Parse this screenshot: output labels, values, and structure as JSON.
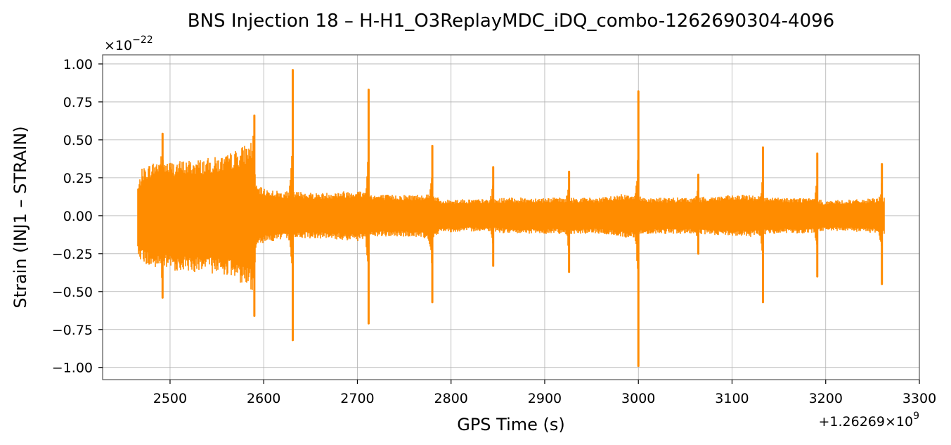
{
  "chart_data": {
    "type": "line",
    "title": "BNS Injection 18 – H-H1_O3ReplayMDC_iDQ_combo-1262690304-4096",
    "xlabel": "GPS Time (s)",
    "ylabel": "Strain (INJ1 – STRAIN)",
    "x_offset_text": "+1.26269×10",
    "x_offset_exponent": "9",
    "y_scale_text": "×10",
    "y_scale_exponent": "−22",
    "xlim": [
      2428,
      3300
    ],
    "ylim": [
      -1.08,
      1.06
    ],
    "grid": true,
    "legend": "none",
    "line_color": "#ff8c00",
    "x_ticks": [
      2500,
      2600,
      2700,
      2800,
      2900,
      3000,
      3100,
      3200,
      3300
    ],
    "x_tick_labels": [
      "2500",
      "2600",
      "2700",
      "2800",
      "2900",
      "3000",
      "3100",
      "3200",
      "3300"
    ],
    "y_ticks": [
      1.0,
      0.75,
      0.5,
      0.25,
      0.0,
      -0.25,
      -0.5,
      -0.75,
      -1.0
    ],
    "y_tick_labels": [
      "1.00",
      "0.75",
      "0.50",
      "0.25",
      "0.00",
      "−0.25",
      "−0.50",
      "−0.75",
      "−1.00"
    ],
    "series": [
      {
        "envelope": {
          "x": [
            2466,
            2470,
            2480,
            2490,
            2500,
            2520,
            2540,
            2560,
            2580,
            2589,
            2592,
            2600,
            2620,
            2640,
            2660,
            2700,
            2720,
            2760,
            2780,
            2790,
            2800,
            2840,
            2860,
            2900,
            2940,
            2960,
            2990,
            3010,
            3060,
            3080,
            3120,
            3140,
            3180,
            3200,
            3240,
            3262
          ],
          "upper": [
            0.2,
            0.31,
            0.35,
            0.38,
            0.36,
            0.37,
            0.38,
            0.4,
            0.47,
            0.5,
            0.2,
            0.18,
            0.16,
            0.16,
            0.15,
            0.17,
            0.14,
            0.14,
            0.15,
            0.1,
            0.11,
            0.11,
            0.12,
            0.12,
            0.12,
            0.12,
            0.15,
            0.12,
            0.12,
            0.13,
            0.14,
            0.12,
            0.12,
            0.1,
            0.11,
            0.12
          ],
          "lower": [
            -0.25,
            -0.31,
            -0.35,
            -0.36,
            -0.36,
            -0.37,
            -0.38,
            -0.39,
            -0.46,
            -0.5,
            -0.19,
            -0.18,
            -0.16,
            -0.15,
            -0.15,
            -0.17,
            -0.14,
            -0.14,
            -0.16,
            -0.1,
            -0.11,
            -0.1,
            -0.12,
            -0.12,
            -0.12,
            -0.12,
            -0.15,
            -0.12,
            -0.12,
            -0.13,
            -0.14,
            -0.12,
            -0.12,
            -0.1,
            -0.11,
            -0.12
          ]
        },
        "spikes": [
          {
            "x": 2492,
            "max": 0.54,
            "min": -0.54
          },
          {
            "x": 2590,
            "max": 0.66,
            "min": -0.66
          },
          {
            "x": 2631,
            "max": 0.96,
            "min": -0.82
          },
          {
            "x": 2712,
            "max": 0.83,
            "min": -0.71
          },
          {
            "x": 2780,
            "max": 0.46,
            "min": -0.57
          },
          {
            "x": 2845,
            "max": 0.32,
            "min": -0.33
          },
          {
            "x": 2926,
            "max": 0.29,
            "min": -0.37
          },
          {
            "x": 3000,
            "max": 0.82,
            "min": -0.99
          },
          {
            "x": 3064,
            "max": 0.27,
            "min": -0.25
          },
          {
            "x": 3133,
            "max": 0.45,
            "min": -0.57
          },
          {
            "x": 3191,
            "max": 0.41,
            "min": -0.4
          },
          {
            "x": 3260,
            "max": 0.34,
            "min": -0.45
          }
        ]
      }
    ]
  }
}
